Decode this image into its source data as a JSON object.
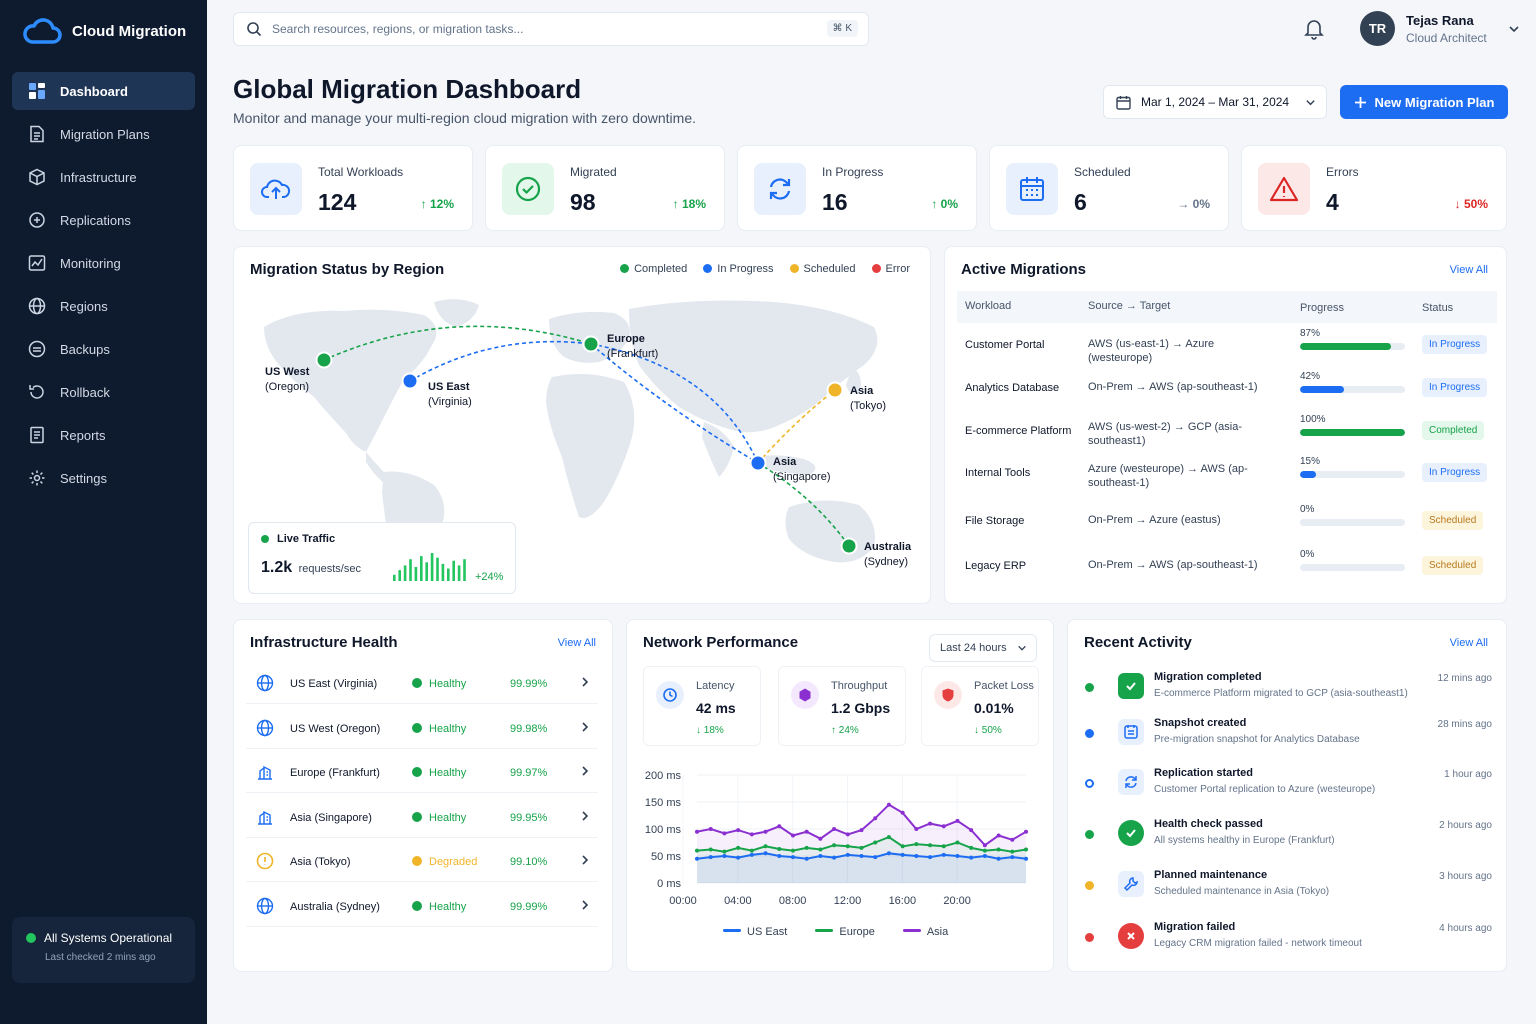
{
  "app": {
    "name": "Cloud Migration"
  },
  "sidebar": {
    "items": [
      {
        "label": "Dashboard",
        "icon": "dashboard-icon",
        "active": true
      },
      {
        "label": "Migration Plans",
        "icon": "document-icon"
      },
      {
        "label": "Infrastructure",
        "icon": "cube-icon"
      },
      {
        "label": "Replications",
        "icon": "replication-icon"
      },
      {
        "label": "Monitoring",
        "icon": "chart-icon"
      },
      {
        "label": "Regions",
        "icon": "globe-icon"
      },
      {
        "label": "Backups",
        "icon": "backup-icon"
      },
      {
        "label": "Rollback",
        "icon": "rollback-icon"
      },
      {
        "label": "Reports",
        "icon": "report-icon"
      },
      {
        "label": "Settings",
        "icon": "gear-icon"
      }
    ],
    "status": {
      "title": "All Systems Operational",
      "subtitle": "Last checked 2 mins ago"
    }
  },
  "header": {
    "search_placeholder": "Search resources, regions, or migration tasks...",
    "shortcut": "⌘ K",
    "user": {
      "initials": "TR",
      "name": "Tejas Rana",
      "role": "Cloud Architect"
    }
  },
  "page": {
    "title": "Global Migration Dashboard",
    "subtitle": "Monitor and manage your multi-region cloud migration with zero downtime.",
    "date_range": "Mar 1, 2024 – Mar 31, 2024",
    "primary_action": "New Migration Plan"
  },
  "stats": [
    {
      "label": "Total Workloads",
      "value": "124",
      "change": "↑ 12%",
      "color": "#16a34a"
    },
    {
      "label": "Migrated",
      "value": "98",
      "change": "↑ 18%",
      "color": "#16a34a"
    },
    {
      "label": "In Progress",
      "value": "16",
      "change": "↑ 0%",
      "color": "#16a34a"
    },
    {
      "label": "Scheduled",
      "value": "6",
      "change": "→ 0%",
      "color": "#64748b"
    },
    {
      "label": "Errors",
      "value": "4",
      "change": "↓ 50%",
      "color": "#dc2626"
    }
  ],
  "map": {
    "title": "Migration Status by Region",
    "legend": [
      {
        "label": "Completed",
        "color": "#16a34a"
      },
      {
        "label": "In Progress",
        "color": "#1d6df2"
      },
      {
        "label": "Scheduled",
        "color": "#f0b429"
      },
      {
        "label": "Error",
        "color": "#e53e3e"
      }
    ],
    "cities": [
      {
        "name": "US West",
        "sub": "(Oregon)",
        "status": "Completed"
      },
      {
        "name": "US East",
        "sub": "(Virginia)",
        "status": "In Progress"
      },
      {
        "name": "Europe",
        "sub": "(Frankfurt)",
        "status": "Completed"
      },
      {
        "name": "Asia",
        "sub": "(Tokyo)",
        "status": "Scheduled"
      },
      {
        "name": "Asia",
        "sub": "(Singapore)",
        "status": "In Progress"
      },
      {
        "name": "Australia",
        "sub": "(Sydney)",
        "status": "Completed"
      }
    ],
    "traffic": {
      "title": "Live Traffic",
      "value": "1.2k",
      "unit": "requests/sec",
      "change": "+24%",
      "bars": [
        4,
        7,
        10,
        14,
        9,
        16,
        12,
        18,
        15,
        11,
        8,
        13,
        10,
        14
      ]
    }
  },
  "active_migrations": {
    "title": "Active Migrations",
    "view_all": "View All",
    "columns": [
      "Workload",
      "Source → Target",
      "Progress",
      "Status"
    ],
    "rows": [
      {
        "workload": "Customer Portal",
        "route": "AWS (us-east-1) → Azure (westeurope)",
        "progress": 87,
        "progress_label": "87%",
        "status": "In Progress",
        "kind": "prog",
        "color": "#16a34a"
      },
      {
        "workload": "Analytics Database",
        "route": "On-Prem → AWS (ap-southeast-1)",
        "progress": 42,
        "progress_label": "42%",
        "status": "In Progress",
        "kind": "prog",
        "color": "#1d6df2"
      },
      {
        "workload": "E-commerce Platform",
        "route": "AWS (us-west-2) → GCP (asia-southeast1)",
        "progress": 100,
        "progress_label": "100%",
        "status": "Completed",
        "kind": "done",
        "color": "#16a34a"
      },
      {
        "workload": "Internal Tools",
        "route": "Azure (westeurope) → AWS (ap-southeast-1)",
        "progress": 15,
        "progress_label": "15%",
        "status": "In Progress",
        "kind": "prog",
        "color": "#1d6df2"
      },
      {
        "workload": "File Storage",
        "route": "On-Prem → Azure (eastus)",
        "progress": 0,
        "progress_label": "0%",
        "status": "Scheduled",
        "kind": "sched",
        "color": "#1d6df2"
      },
      {
        "workload": "Legacy ERP",
        "route": "On-Prem → AWS (ap-southeast-1)",
        "progress": 0,
        "progress_label": "0%",
        "status": "Scheduled",
        "kind": "sched",
        "color": "#1d6df2"
      }
    ]
  },
  "infra": {
    "title": "Infrastructure Health",
    "view_all": "View All",
    "rows": [
      {
        "name": "US East (Virginia)",
        "health": "Healthy",
        "uptime": "99.99%",
        "icon": "globe-icon",
        "color": "#16a34a"
      },
      {
        "name": "US West (Oregon)",
        "health": "Healthy",
        "uptime": "99.98%",
        "icon": "globe-icon",
        "color": "#16a34a"
      },
      {
        "name": "Europe (Frankfurt)",
        "health": "Healthy",
        "uptime": "99.97%",
        "icon": "building-icon",
        "color": "#16a34a"
      },
      {
        "name": "Asia (Singapore)",
        "health": "Healthy",
        "uptime": "99.95%",
        "icon": "building-icon",
        "color": "#16a34a"
      },
      {
        "name": "Asia (Tokyo)",
        "health": "Degraded",
        "uptime": "99.10%",
        "icon": "warning-circle-icon",
        "color": "#f0b429"
      },
      {
        "name": "Australia (Sydney)",
        "health": "Healthy",
        "uptime": "99.99%",
        "icon": "globe-icon",
        "color": "#16a34a"
      }
    ]
  },
  "network": {
    "title": "Network Performance",
    "range": "Last 24 hours",
    "metrics": [
      {
        "label": "Latency",
        "value": "42 ms",
        "change": "↓ 18%",
        "icon": "clock-icon"
      },
      {
        "label": "Throughput",
        "value": "1.2 Gbps",
        "change": "↑ 24%",
        "icon": "hexagon-icon"
      },
      {
        "label": "Packet Loss",
        "value": "0.01%",
        "change": "↓ 50%",
        "icon": "shield-icon"
      }
    ]
  },
  "chart_data": {
    "type": "line",
    "ylim": [
      0,
      200
    ],
    "y_ticks": [
      "200 ms",
      "150 ms",
      "100 ms",
      "50 ms",
      "0 ms"
    ],
    "x_ticks": [
      "00:00",
      "04:00",
      "08:00",
      "12:00",
      "16:00",
      "20:00"
    ],
    "x": [
      0,
      1,
      2,
      3,
      4,
      5,
      6,
      7,
      8,
      9,
      10,
      11,
      12,
      13,
      14,
      15,
      16,
      17,
      18,
      19,
      20,
      21,
      22,
      23,
      24
    ],
    "series": [
      {
        "name": "US East",
        "color": "#1d6df2",
        "values": [
          45,
          48,
          50,
          47,
          52,
          55,
          50,
          48,
          45,
          50,
          47,
          52,
          50,
          48,
          55,
          52,
          50,
          48,
          52,
          50,
          47,
          50,
          45,
          48,
          45
        ]
      },
      {
        "name": "Europe",
        "color": "#16a34a",
        "values": [
          60,
          62,
          58,
          65,
          60,
          68,
          63,
          60,
          65,
          62,
          70,
          68,
          65,
          75,
          85,
          68,
          72,
          70,
          68,
          75,
          65,
          60,
          62,
          58,
          62
        ]
      },
      {
        "name": "Asia",
        "color": "#8b2fd1",
        "values": [
          95,
          100,
          92,
          98,
          90,
          95,
          105,
          88,
          95,
          82,
          100,
          90,
          98,
          120,
          145,
          130,
          100,
          110,
          105,
          115,
          98,
          70,
          88,
          80,
          95
        ]
      }
    ]
  },
  "activity": {
    "title": "Recent Activity",
    "view_all": "View All",
    "items": [
      {
        "title": "Migration completed",
        "desc": "E-commerce Platform migrated to GCP (asia-southeast1)",
        "time": "12 mins ago",
        "color": "#16a34a",
        "icon": "check-icon"
      },
      {
        "title": "Snapshot created",
        "desc": "Pre-migration snapshot for Analytics Database",
        "time": "28 mins ago",
        "color": "#1d6df2",
        "icon": "snapshot-icon"
      },
      {
        "title": "Replication started",
        "desc": "Customer Portal replication to Azure (westeurope)",
        "time": "1 hour ago",
        "color": "#1d6df2",
        "icon": "sync-icon"
      },
      {
        "title": "Health check passed",
        "desc": "All systems healthy in Europe (Frankfurt)",
        "time": "2 hours ago",
        "color": "#16a34a",
        "icon": "check-circle-icon"
      },
      {
        "title": "Planned maintenance",
        "desc": "Scheduled maintenance in Asia (Tokyo)",
        "time": "3 hours ago",
        "color": "#f0b429",
        "icon": "wrench-icon"
      },
      {
        "title": "Migration failed",
        "desc": "Legacy CRM migration failed - network timeout",
        "time": "4 hours ago",
        "color": "#e53e3e",
        "icon": "x-circle-icon"
      }
    ]
  }
}
